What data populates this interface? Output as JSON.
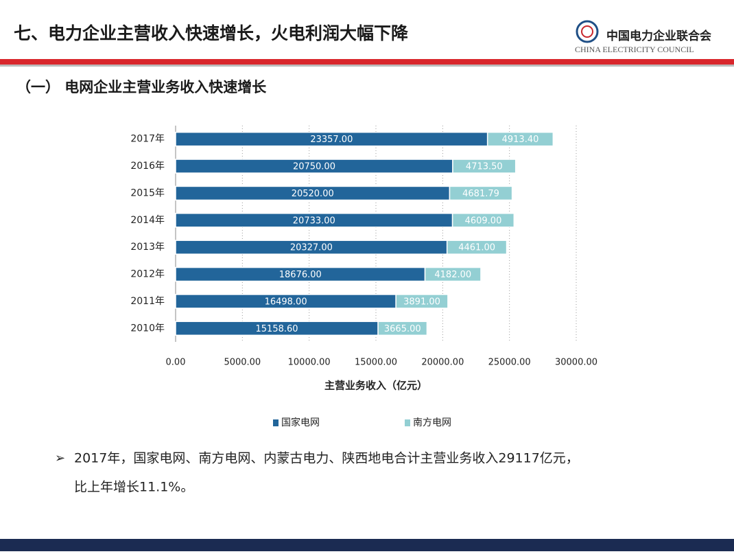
{
  "header": {
    "title": "七、电力企业主营收入快速增长，火电利润大幅下降",
    "logo_cn": "中国电力企业联合会",
    "logo_en": "CHINA ELECTRICITY COUNCIL"
  },
  "subtitle": "（一） 电网企业主营业务收入快速增长",
  "chart_data": {
    "type": "stacked-barh",
    "categories": [
      "2017年",
      "2016年",
      "2015年",
      "2014年",
      "2013年",
      "2012年",
      "2011年",
      "2010年"
    ],
    "series": [
      {
        "name": "国家电网",
        "color": "#22659a",
        "values": [
          23357,
          20750,
          20520,
          20733,
          20327,
          18676,
          16498,
          15158.6
        ],
        "value_labels": [
          "23357.00",
          "20750.00",
          "20520.00",
          "20733.00",
          "20327.00",
          "18676.00",
          "16498.00",
          "15158.60"
        ]
      },
      {
        "name": "南方电网",
        "color": "#93cfd3",
        "values": [
          4913.4,
          4713.5,
          4681.79,
          4609,
          4461,
          4182,
          3891,
          3665
        ],
        "value_labels": [
          "4913.40",
          "4713.50",
          "4681.79",
          "4609.00",
          "4461.00",
          "4182.00",
          "3891.00",
          "3665.00"
        ]
      }
    ],
    "xlabel": "主营业务收入（亿元）",
    "xlim": [
      0,
      30000
    ],
    "xticks": [
      {
        "value": 0,
        "label": "0.00"
      },
      {
        "value": 5000,
        "label": "5000.00"
      },
      {
        "value": 10000,
        "label": "10000.00"
      },
      {
        "value": 15000,
        "label": "15000.00"
      },
      {
        "value": 20000,
        "label": "20000.00"
      },
      {
        "value": 25000,
        "label": "25000.00"
      },
      {
        "value": 30000,
        "label": "30000.00"
      }
    ],
    "grid": true
  },
  "bullet": [
    "2017年，国家电网、南方电网、内蒙古电力、陕西地电合计主营业务收入29117亿元，",
    "比上年增长11.1%。"
  ]
}
